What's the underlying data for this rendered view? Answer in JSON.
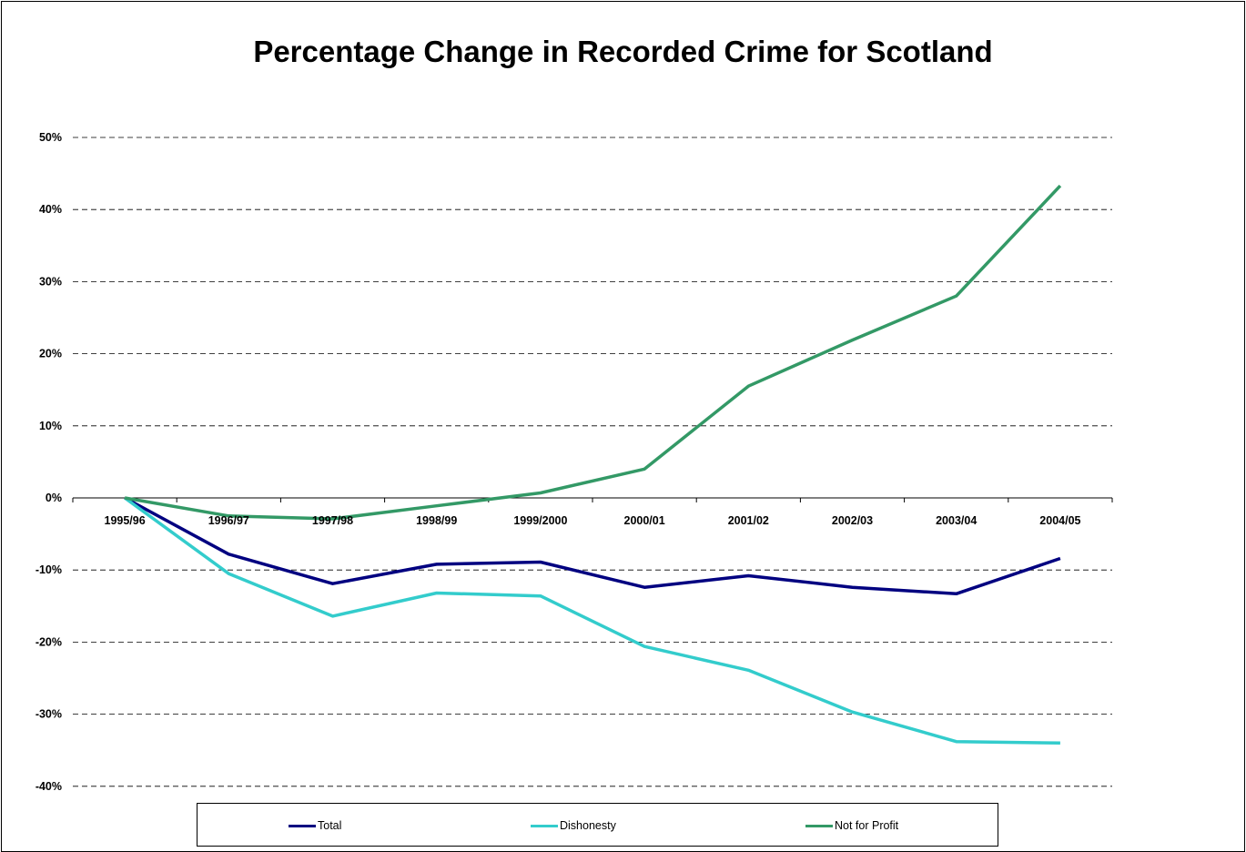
{
  "chart_data": {
    "type": "line",
    "title": "Percentage Change in Recorded Crime for Scotland",
    "categories": [
      "1995/96",
      "1996/97",
      "1997/98",
      "1998/99",
      "1999/2000",
      "2000/01",
      "2001/02",
      "2002/03",
      "2003/04",
      "2004/05"
    ],
    "y_ticks": [
      "50%",
      "40%",
      "30%",
      "20%",
      "10%",
      "0%",
      "-10%",
      "-20%",
      "-30%",
      "-40%"
    ],
    "ylim": [
      -40,
      50
    ],
    "grid": true,
    "legend_position": "bottom",
    "series": [
      {
        "name": "Total",
        "color": "#000080",
        "values": [
          0,
          -7.8,
          -11.9,
          -9.2,
          -8.9,
          -12.4,
          -10.8,
          -12.4,
          -13.3,
          -8.4
        ]
      },
      {
        "name": "Dishonesty",
        "color": "#33CCCC",
        "values": [
          0,
          -10.5,
          -16.4,
          -13.2,
          -13.6,
          -20.6,
          -23.9,
          -29.7,
          -33.8,
          -34.0
        ]
      },
      {
        "name": "Not for Profit",
        "color": "#339966",
        "values": [
          0,
          -2.5,
          -2.9,
          -1.1,
          0.7,
          4.0,
          15.5,
          21.9,
          28.0,
          43.3
        ]
      }
    ]
  }
}
